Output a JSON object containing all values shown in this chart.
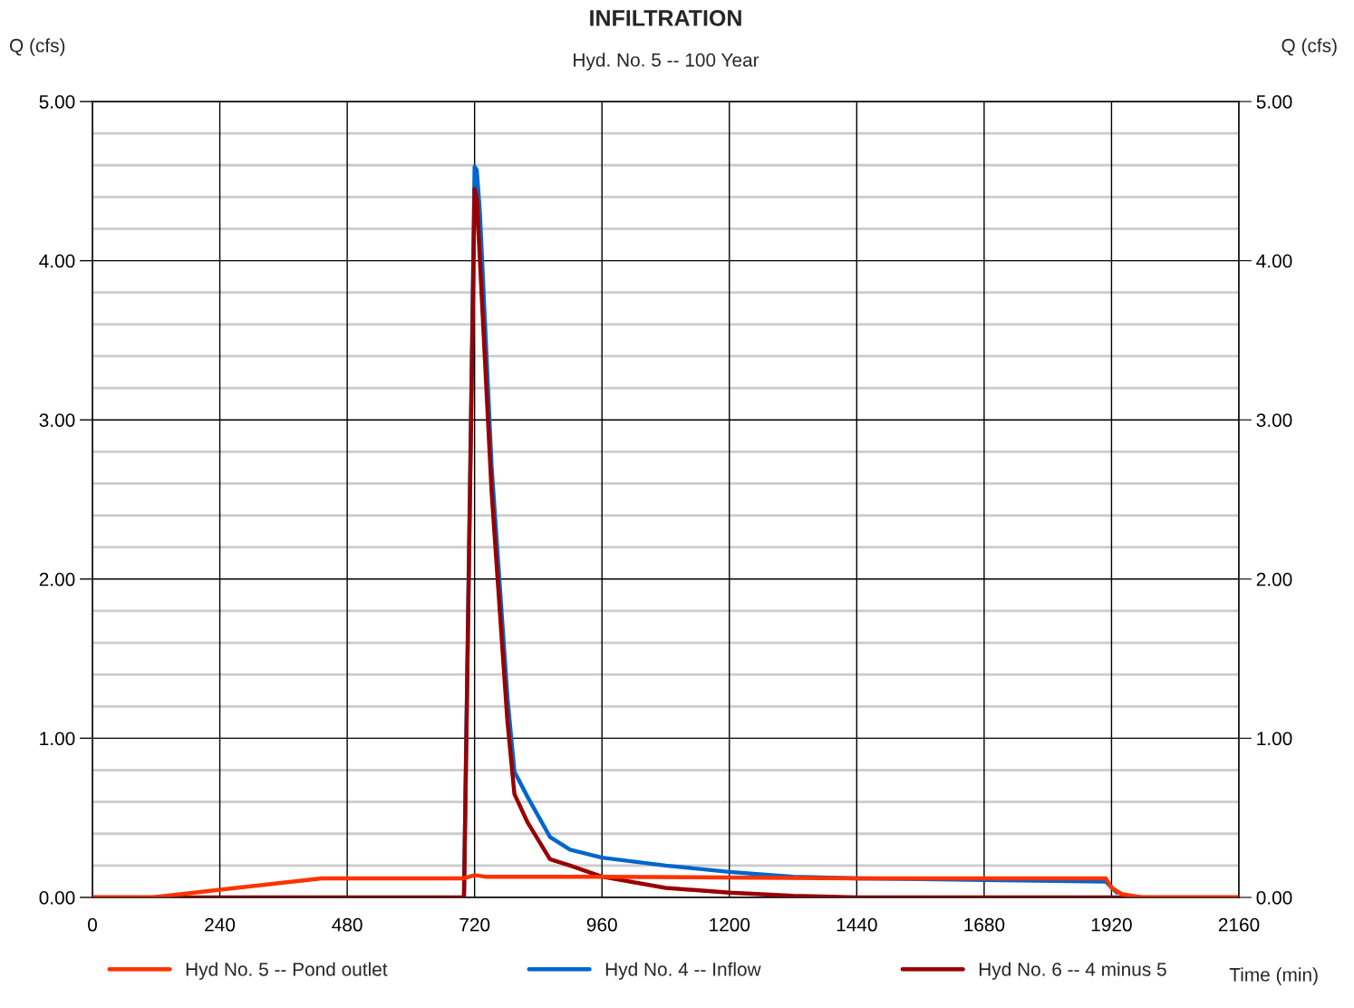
{
  "chart_data": {
    "type": "line",
    "title": "INFILTRATION",
    "subtitle": "Hyd. No. 5 -- 100 Year",
    "xlabel": "Time (min)",
    "ylabel": "Q (cfs)",
    "y2label": "Q (cfs)",
    "xlim": [
      0,
      2160
    ],
    "xticks": [
      0,
      240,
      480,
      720,
      960,
      1200,
      1440,
      1680,
      1920,
      2160
    ],
    "ylim": [
      0,
      5
    ],
    "yticks": [
      {
        "value": 0,
        "label": "0.00"
      },
      {
        "value": 1,
        "label": "1.00"
      },
      {
        "value": 2,
        "label": "2.00"
      },
      {
        "value": 3,
        "label": "3.00"
      },
      {
        "value": 4,
        "label": "4.00"
      },
      {
        "value": 5,
        "label": "5.00"
      }
    ],
    "y2lim": [
      0,
      5
    ],
    "y2ticks": [
      {
        "value": 0,
        "label": "0.00"
      },
      {
        "value": 1,
        "label": "1.00"
      },
      {
        "value": 2,
        "label": "2.00"
      },
      {
        "value": 3,
        "label": "3.00"
      },
      {
        "value": 4,
        "label": "4.00"
      },
      {
        "value": 5,
        "label": "5.00"
      }
    ],
    "grid": true,
    "legend": "bottom",
    "marker": "none",
    "line_style": "solid",
    "series": [
      {
        "name": "Hyd No. 4 -- Inflow",
        "color": "#0066cc",
        "x": [
          700,
          720,
          724,
          730,
          752,
          782,
          795,
          820,
          862,
          900,
          960,
          1080,
          1200,
          1320,
          1440,
          1680,
          1909,
          1930
        ],
        "values": [
          0,
          4.59,
          4.57,
          4.3,
          2.71,
          1.25,
          0.79,
          0.63,
          0.38,
          0.3,
          0.25,
          0.2,
          0.16,
          0.13,
          0.12,
          0.11,
          0.1,
          0.03
        ]
      },
      {
        "name": "Hyd No. 6 -- 4 minus 5",
        "color": "#990000",
        "x": [
          0,
          700,
          720,
          724,
          752,
          782,
          795,
          820,
          862,
          900,
          960,
          1080,
          1200,
          1320,
          1440,
          2160
        ],
        "values": [
          0,
          0,
          4.45,
          4.4,
          2.55,
          1.1,
          0.65,
          0.47,
          0.24,
          0.2,
          0.13,
          0.06,
          0.03,
          0.01,
          0,
          0
        ]
      },
      {
        "name": "Hyd No. 5 -- Pond outlet",
        "color": "#ff3300",
        "x": [
          0,
          113,
          432,
          700,
          720,
          740,
          960,
          1440,
          1909,
          1920,
          1940,
          1977,
          2160
        ],
        "values": [
          0,
          0,
          0.12,
          0.12,
          0.14,
          0.13,
          0.13,
          0.12,
          0.12,
          0.06,
          0.02,
          0,
          0
        ]
      }
    ]
  }
}
